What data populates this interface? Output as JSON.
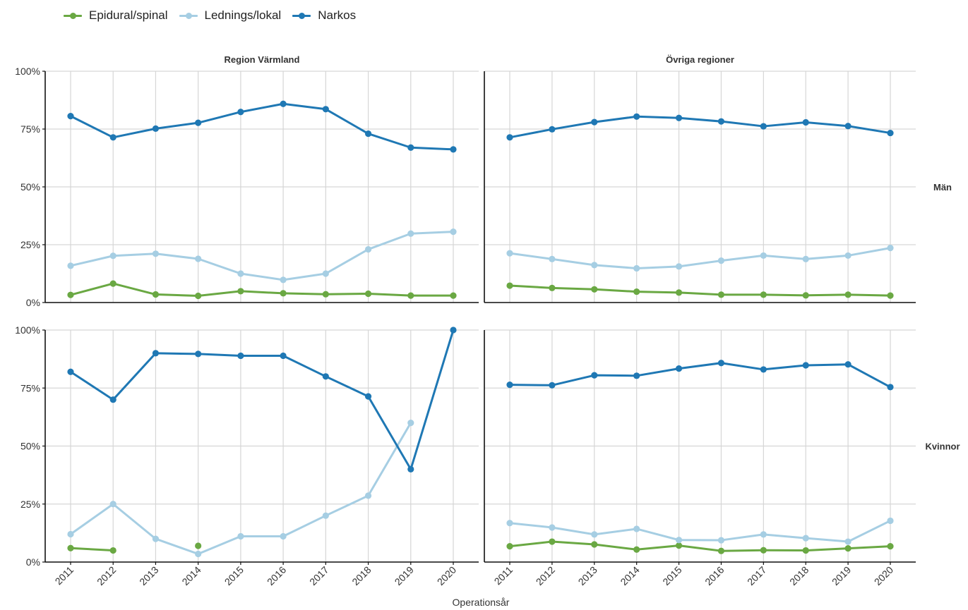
{
  "chart_data": {
    "type": "line",
    "x_title": "Operationsår",
    "x": [
      "2011",
      "2012",
      "2013",
      "2014",
      "2015",
      "2016",
      "2017",
      "2018",
      "2019",
      "2020"
    ],
    "ylim": [
      0,
      100
    ],
    "yticks": [
      "0%",
      "25%",
      "50%",
      "75%",
      "100%"
    ],
    "grid": true,
    "legend_position": "top-left",
    "columns": [
      "Region Värmland",
      "Övriga regioner"
    ],
    "rows": [
      "Män",
      "Kvinnor"
    ],
    "series_meta": [
      {
        "name": "Epidural/spinal",
        "color": "#6aa843"
      },
      {
        "name": "Lednings/lokal",
        "color": "#a6cee3"
      },
      {
        "name": "Narkos",
        "color": "#1f78b4"
      }
    ],
    "panels": [
      {
        "row": "Män",
        "column": "Region Värmland",
        "series": [
          {
            "name": "Epidural/spinal",
            "values": [
              3.3,
              8.2,
              3.5,
              2.9,
              4.9,
              4.0,
              3.6,
              3.8,
              3.0,
              3.0
            ]
          },
          {
            "name": "Lednings/lokal",
            "values": [
              15.9,
              20.2,
              21.1,
              18.9,
              12.5,
              9.8,
              12.5,
              23.0,
              29.8,
              30.6
            ]
          },
          {
            "name": "Narkos",
            "values": [
              80.6,
              71.4,
              75.2,
              77.7,
              82.4,
              85.9,
              83.6,
              73.0,
              67.0,
              66.2
            ]
          }
        ]
      },
      {
        "row": "Män",
        "column": "Övriga regioner",
        "series": [
          {
            "name": "Epidural/spinal",
            "values": [
              7.3,
              6.3,
              5.7,
              4.7,
              4.3,
              3.4,
              3.4,
              3.1,
              3.4,
              3.0
            ]
          },
          {
            "name": "Lednings/lokal",
            "values": [
              21.3,
              18.8,
              16.2,
              14.8,
              15.6,
              18.1,
              20.3,
              18.8,
              20.3,
              23.6
            ]
          },
          {
            "name": "Narkos",
            "values": [
              71.4,
              74.9,
              78.0,
              80.4,
              79.8,
              78.3,
              76.2,
              77.9,
              76.3,
              73.3
            ]
          }
        ]
      },
      {
        "row": "Kvinnor",
        "column": "Region Värmland",
        "series": [
          {
            "name": "Epidural/spinal",
            "values": [
              6.0,
              5.0,
              null,
              7.0,
              null,
              null,
              null,
              null,
              null,
              null
            ]
          },
          {
            "name": "Lednings/lokal",
            "values": [
              12.0,
              25.0,
              10.0,
              3.5,
              11.1,
              11.1,
              20.0,
              28.6,
              60.0,
              null
            ]
          },
          {
            "name": "Narkos",
            "values": [
              82.0,
              70.0,
              90.0,
              89.7,
              88.9,
              88.9,
              80.0,
              71.4,
              40.0,
              100.0
            ]
          }
        ]
      },
      {
        "row": "Kvinnor",
        "column": "Övriga regioner",
        "series": [
          {
            "name": "Epidural/spinal",
            "values": [
              6.8,
              8.8,
              7.6,
              5.4,
              7.1,
              4.8,
              5.1,
              5.0,
              5.9,
              6.8
            ]
          },
          {
            "name": "Lednings/lokal",
            "values": [
              16.8,
              14.9,
              11.9,
              14.3,
              9.5,
              9.4,
              11.9,
              10.3,
              8.8,
              17.8
            ]
          },
          {
            "name": "Narkos",
            "values": [
              76.4,
              76.2,
              80.5,
              80.3,
              83.4,
              85.8,
              83.0,
              84.8,
              85.2,
              75.4
            ]
          }
        ]
      }
    ]
  }
}
